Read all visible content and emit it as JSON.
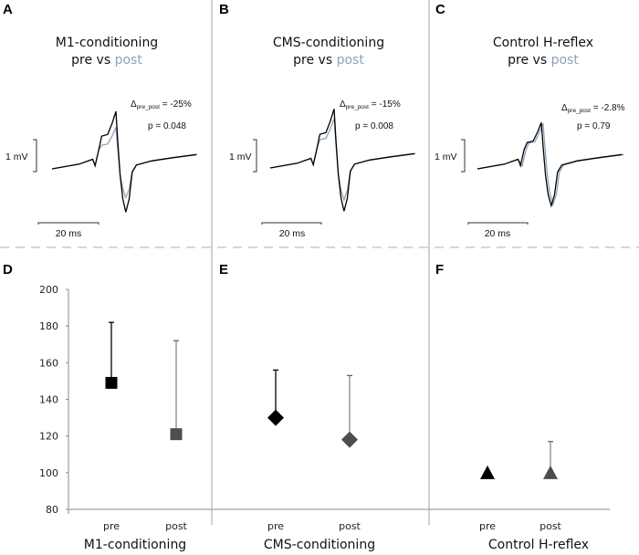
{
  "colors": {
    "pre": "#000000",
    "post_trace": "#8fa3b8",
    "post_marker": "#4d4d4d",
    "post_text": "#8fa3b8",
    "axis": "#7f8f8f",
    "separator": "#b0b0b0",
    "dashed": "#c8c8c8"
  },
  "chart_data": [
    {
      "panel": "A",
      "type": "line",
      "title_line1": "M1-conditioning",
      "title_pre": "pre vs ",
      "title_post": "post",
      "delta_prefix": "Δ",
      "delta_sub": "pre_post",
      "delta_value": " = -25%",
      "p_value": "p = 0.048",
      "amplitude_scale": "1 mV",
      "time_scale": "20 ms",
      "series": [
        {
          "name": "pre",
          "peak_mV": 1.8,
          "trough_mV": -1.35
        },
        {
          "name": "post",
          "peak_mV": 1.3,
          "trough_mV": -0.9
        }
      ],
      "shift_ms": 0
    },
    {
      "panel": "B",
      "type": "line",
      "title_line1": "CMS-conditioning",
      "title_pre": "pre vs ",
      "title_post": "post",
      "delta_prefix": "Δ",
      "delta_sub": "pre_post",
      "delta_value": " = -15%",
      "p_value": "p = 0.008",
      "amplitude_scale": "1 mV",
      "time_scale": "20 ms",
      "series": [
        {
          "name": "pre",
          "peak_mV": 1.85,
          "trough_mV": -1.35
        },
        {
          "name": "post",
          "peak_mV": 1.55,
          "trough_mV": -1.0
        }
      ],
      "shift_ms": 0
    },
    {
      "panel": "C",
      "type": "line",
      "title_line1": "Control H-reflex",
      "title_pre": "pre vs ",
      "title_post": "post",
      "delta_prefix": "Δ",
      "delta_sub": "pre_post",
      "delta_value": " = -2.8%",
      "p_value": "p = 0.79",
      "amplitude_scale": "1 mV",
      "time_scale": "20 ms",
      "series": [
        {
          "name": "pre",
          "peak_mV": 1.45,
          "trough_mV": -1.15
        },
        {
          "name": "post",
          "peak_mV": 1.42,
          "trough_mV": -1.12
        }
      ],
      "shift_ms": 0.6
    },
    {
      "panel": "D",
      "type": "scatter",
      "group_label": "M1-conditioning",
      "categories": [
        "pre",
        "post"
      ],
      "marker": "square",
      "values": [
        149,
        121
      ],
      "error_upper": [
        182,
        172
      ],
      "ylim": [
        80,
        200
      ],
      "yticks": [
        80,
        100,
        120,
        140,
        160,
        180,
        200
      ]
    },
    {
      "panel": "E",
      "type": "scatter",
      "group_label": "CMS-conditioning",
      "categories": [
        "pre",
        "post"
      ],
      "marker": "diamond",
      "values": [
        130,
        118
      ],
      "error_upper": [
        156,
        153
      ],
      "ylim": [
        80,
        200
      ]
    },
    {
      "panel": "F",
      "type": "scatter",
      "group_label": "Control H-reflex",
      "categories": [
        "pre",
        "post"
      ],
      "marker": "triangle",
      "values": [
        100,
        100
      ],
      "error_upper": [
        100,
        117
      ],
      "ylim": [
        80,
        200
      ]
    }
  ]
}
